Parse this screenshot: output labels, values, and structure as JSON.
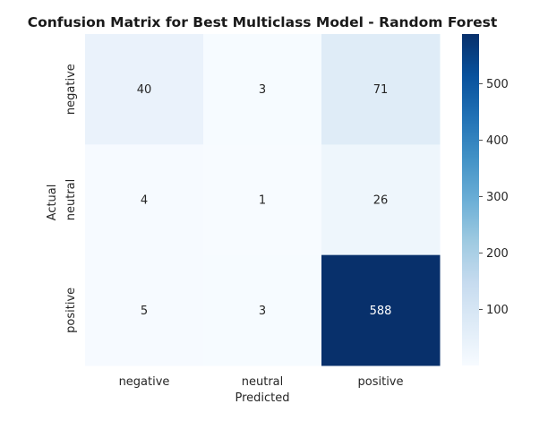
{
  "chart_data": {
    "type": "heatmap",
    "title": "Confusion Matrix for Best Multiclass Model - Random Forest",
    "xlabel": "Predicted",
    "ylabel": "Actual",
    "x_categories": [
      "negative",
      "neutral",
      "positive"
    ],
    "y_categories": [
      "negative",
      "neutral",
      "positive"
    ],
    "values": [
      [
        40,
        3,
        71
      ],
      [
        4,
        1,
        26
      ],
      [
        5,
        3,
        588
      ]
    ],
    "value_labels": [
      [
        "40",
        "3",
        "71"
      ],
      [
        "4",
        "1",
        "26"
      ],
      [
        "5",
        "3",
        "588"
      ]
    ],
    "colormap": "Blues",
    "color_range": [
      1,
      588
    ],
    "colorbar_ticks": [
      100,
      200,
      300,
      400,
      500
    ],
    "colorbar_tick_labels": [
      "100",
      "200",
      "300",
      "400",
      "500"
    ],
    "grid": false
  }
}
